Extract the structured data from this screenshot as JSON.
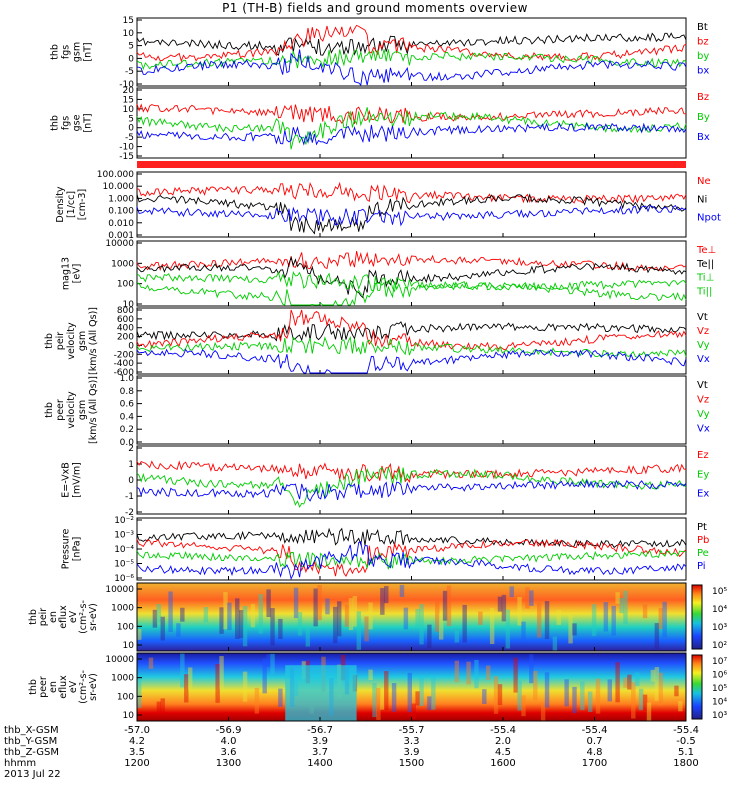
{
  "title": "P1 (TH-B) fields and ground moments overview",
  "chart_data": {
    "type": "line",
    "x_axis": {
      "rows": [
        {
          "name": "thb_X-GSM",
          "values": [
            "-57.0",
            "-56.9",
            "-56.7",
            "-55.7",
            "-55.4",
            "-55.4",
            "-55.4"
          ]
        },
        {
          "name": "thb_Y-GSM",
          "values": [
            "4.2",
            "4.0",
            "3.9",
            "3.3",
            "2.0",
            "0.7",
            "-0.5"
          ]
        },
        {
          "name": "thb_Z-GSM",
          "values": [
            "3.5",
            "3.6",
            "3.7",
            "3.9",
            "4.5",
            "4.8",
            "5.1"
          ]
        },
        {
          "name": "hhmm",
          "values": [
            "1200",
            "1300",
            "1400",
            "1500",
            "1600",
            "1700",
            "1800"
          ]
        }
      ],
      "date": "2013 Jul 22"
    },
    "panels": [
      {
        "id": "fgs-gsm",
        "ylabel": [
          "thb",
          "fgs",
          "gsm",
          "[nT]"
        ],
        "yticks": [
          "15",
          "10",
          "5",
          "0",
          "-5",
          "-10"
        ],
        "series": [
          {
            "name": "Bt",
            "color": "#000000"
          },
          {
            "name": "bz",
            "color": "#ff0000"
          },
          {
            "name": "by",
            "color": "#00cc00"
          },
          {
            "name": "bx",
            "color": "#0000ff"
          }
        ]
      },
      {
        "id": "fgs-gse",
        "ylabel": [
          "thb",
          "fgs",
          "gse",
          "[nT]"
        ],
        "yticks": [
          "20",
          "15",
          "10",
          "5",
          "0",
          "-5",
          "-10",
          "-15"
        ],
        "series": [
          {
            "name": "Bz",
            "color": "#ff0000"
          },
          {
            "name": "By",
            "color": "#00cc00"
          },
          {
            "name": "Bx",
            "color": "#0000ff"
          }
        ]
      },
      {
        "id": "density",
        "ylabel": [
          "Density",
          "[1/cc]",
          "[cm-3]"
        ],
        "yticks": [
          "100.000",
          "10.000",
          "1.000",
          "0.100",
          "0.010",
          "0.001"
        ],
        "log": true,
        "series": [
          {
            "name": "Ne",
            "color": "#ff0000"
          },
          {
            "name": "Ni",
            "color": "#000000"
          },
          {
            "name": "Npot",
            "color": "#0000ff"
          }
        ]
      },
      {
        "id": "temp",
        "ylabel": [
          "mag13",
          "[eV]"
        ],
        "yticks": [
          "10000",
          "1000",
          "100",
          "10"
        ],
        "log": true,
        "series": [
          {
            "name": "Te⊥",
            "color": "#ff0000"
          },
          {
            "name": "Te||",
            "color": "#000000"
          },
          {
            "name": "Ti⊥",
            "color": "#00cc00"
          },
          {
            "name": "Ti||",
            "color": "#00cc00"
          }
        ]
      },
      {
        "id": "peir-vel",
        "ylabel": [
          "thb",
          "peir",
          "velocity",
          "gsm",
          "[km/s (All Qs)]"
        ],
        "yticks": [
          "800",
          "600",
          "400",
          "200",
          "0",
          "-200",
          "-400",
          "-600"
        ],
        "series": [
          {
            "name": "Vt",
            "color": "#000000"
          },
          {
            "name": "Vz",
            "color": "#ff0000"
          },
          {
            "name": "Vy",
            "color": "#00cc00"
          },
          {
            "name": "Vx",
            "color": "#0000ff"
          }
        ]
      },
      {
        "id": "peer-vel",
        "ylabel": [
          "thb",
          "peer",
          "velocity",
          "gsm",
          "[km/s (All Qs)]"
        ],
        "yticks": [
          "1.0",
          "0.8",
          "0.6",
          "0.4",
          "0.2",
          "0.0"
        ],
        "series": [
          {
            "name": "Vt",
            "color": "#000000"
          },
          {
            "name": "Vz",
            "color": "#ff0000"
          },
          {
            "name": "Vy",
            "color": "#00cc00"
          },
          {
            "name": "Vx",
            "color": "#0000ff"
          }
        ]
      },
      {
        "id": "efield",
        "ylabel": [
          "E=-VxB",
          "[mV/m]"
        ],
        "yticks": [
          "2",
          "1",
          "0",
          "-1",
          "-2"
        ],
        "series": [
          {
            "name": "Ez",
            "color": "#ff0000"
          },
          {
            "name": "Ey",
            "color": "#00cc00"
          },
          {
            "name": "Ex",
            "color": "#0000ff"
          }
        ]
      },
      {
        "id": "pressure",
        "ylabel": [
          "Pressure",
          "[nPa]"
        ],
        "yticks": [
          "10⁻²",
          "10⁻³",
          "10⁻⁴",
          "10⁻⁵",
          "10⁻⁶"
        ],
        "log": true,
        "series": [
          {
            "name": "Pt",
            "color": "#000000"
          },
          {
            "name": "Pb",
            "color": "#ff0000"
          },
          {
            "name": "Pe",
            "color": "#00cc00"
          },
          {
            "name": "Pi",
            "color": "#0000ff"
          }
        ]
      }
    ],
    "spectrograms": [
      {
        "id": "peir-en",
        "ylabel": [
          "thb",
          "peir",
          "en",
          "eflux",
          "eV",
          "(cm²-s-",
          "sr-eV)"
        ],
        "yticks": [
          "10000",
          "1000",
          "100",
          "10"
        ],
        "colorbar": [
          "10⁵",
          "10⁴",
          "10³",
          "10²"
        ]
      },
      {
        "id": "peer-en",
        "ylabel": [
          "thb",
          "peer",
          "en",
          "eflux",
          "eV",
          "(cm²-s-",
          "sr-eV)"
        ],
        "yticks": [
          "10000",
          "1000",
          "100",
          "10"
        ],
        "colorbar": [
          "10⁷",
          "10⁶",
          "10⁵",
          "10⁴",
          "10³"
        ]
      }
    ]
  }
}
